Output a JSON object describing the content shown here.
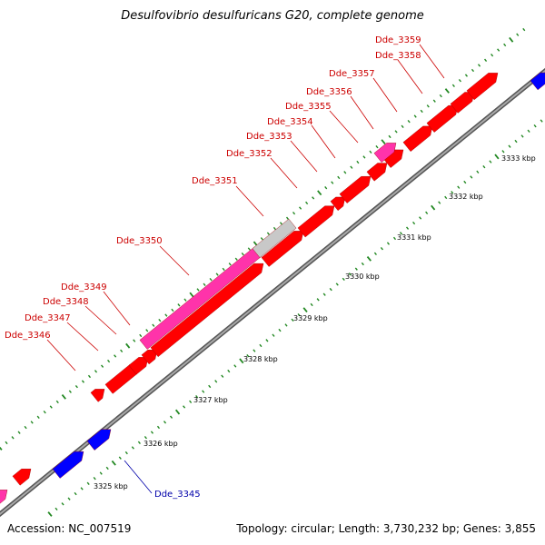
{
  "title": "Desulfovibrio desulfuricans G20, complete genome",
  "footer": {
    "accession": "Accession: NC_007519",
    "topology": "Topology: circular; Length: 3,730,232 bp; Genes: 3,855"
  },
  "colors": {
    "forward_gene": "#ff0000",
    "reverse_gene": "#0000ff",
    "rna_gene": "#ff33aa",
    "pseudo_gene": "#c8c8c8",
    "backbone": "#808080",
    "tick": "#228822",
    "label_forward": "#cc0000",
    "label_reverse": "#0000aa"
  },
  "scale_labels": [
    "3325 kbp",
    "3326 kbp",
    "3327 kbp",
    "3328 kbp",
    "3329 kbp",
    "3330 kbp",
    "3331 kbp",
    "3332 kbp",
    "3333 kbp"
  ],
  "gene_labels": [
    {
      "text": "Dde_3345",
      "strand": "reverse"
    },
    {
      "text": "Dde_3346",
      "strand": "forward"
    },
    {
      "text": "Dde_3347",
      "strand": "forward"
    },
    {
      "text": "Dde_3348",
      "strand": "forward"
    },
    {
      "text": "Dde_3349",
      "strand": "forward"
    },
    {
      "text": "Dde_3350",
      "strand": "forward"
    },
    {
      "text": "Dde_3351",
      "strand": "forward"
    },
    {
      "text": "Dde_3352",
      "strand": "forward"
    },
    {
      "text": "Dde_3353",
      "strand": "forward"
    },
    {
      "text": "Dde_3354",
      "strand": "forward"
    },
    {
      "text": "Dde_3355",
      "strand": "forward"
    },
    {
      "text": "Dde_3356",
      "strand": "forward"
    },
    {
      "text": "Dde_3357",
      "strand": "forward"
    },
    {
      "text": "Dde_3358",
      "strand": "forward"
    },
    {
      "text": "Dde_3359",
      "strand": "forward"
    }
  ]
}
